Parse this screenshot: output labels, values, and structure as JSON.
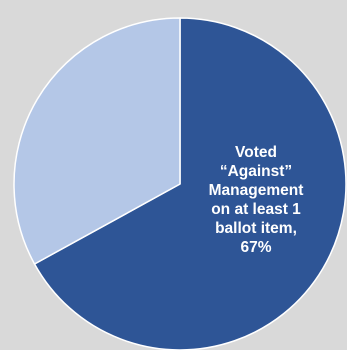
{
  "chart_data": {
    "type": "pie",
    "categories": [
      "Voted “Against” Management on at least 1 ballot item",
      ""
    ],
    "values": [
      67,
      33
    ],
    "colors": [
      "#2e5596",
      "#b4c7e7"
    ],
    "background_color": "#d9d9d9",
    "slice_border_color": "#ffffff",
    "start_direction": "top",
    "label_lines": [
      [
        "Voted",
        "“Against”",
        "Management",
        "on at least 1",
        "ballot item,",
        "67%"
      ],
      []
    ],
    "legend": "none"
  }
}
